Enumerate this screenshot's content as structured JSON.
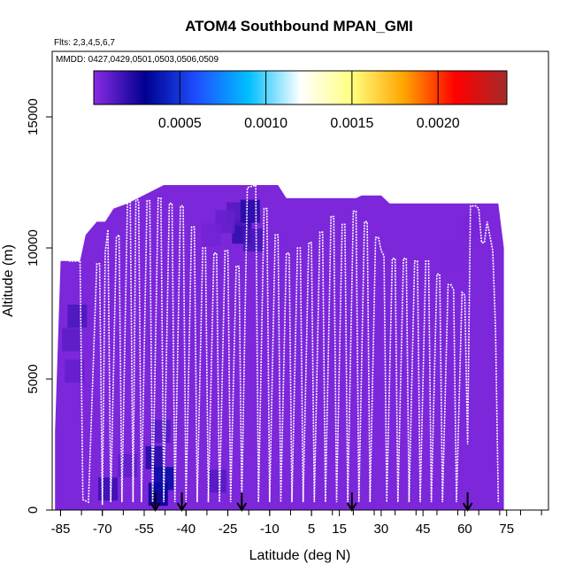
{
  "chart_data": {
    "type": "heatmap",
    "title": "ATOM4 Southbound MPAN_GMI",
    "subtitle_flights": "Flts: 2,3,4,5,6,7",
    "subtitle_dates": "MMDD: 0427,0429,0501,0503,0506,0509",
    "xlabel": "Latitude (deg N)",
    "ylabel": "Altitude (m)",
    "xlim": [
      -88,
      90
    ],
    "ylim": [
      0,
      17500
    ],
    "x_ticks": [
      "-85",
      "-70",
      "-55",
      "-40",
      "-25",
      "-10",
      "5",
      "15",
      "30",
      "45",
      "60",
      "75"
    ],
    "y_ticks": [
      "0",
      "5000",
      "10000",
      "15000"
    ],
    "colorbar": {
      "min": 0,
      "max": 0.0024,
      "tick_values": [
        0.0005,
        0.001,
        0.0015,
        0.002
      ],
      "tick_labels": [
        "0.0005",
        "0.0010",
        "0.0015",
        "0.0020"
      ],
      "colors": [
        "#8a2be2",
        "#000090",
        "#1e50ff",
        "#00bfff",
        "#ffffff",
        "#ffff80",
        "#ffa500",
        "#ff0000",
        "#a52a2a"
      ]
    },
    "background_value": 3e-05,
    "field_envelope": [
      {
        "lat": -87,
        "top": 3000
      },
      {
        "lat": -85,
        "top": 9500
      },
      {
        "lat": -78,
        "top": 9500
      },
      {
        "lat": -76,
        "top": 10500
      },
      {
        "lat": -72,
        "top": 11000
      },
      {
        "lat": -69,
        "top": 11000
      },
      {
        "lat": -66,
        "top": 11500
      },
      {
        "lat": -61,
        "top": 11700
      },
      {
        "lat": -48,
        "top": 12400
      },
      {
        "lat": -7,
        "top": 12400
      },
      {
        "lat": -4,
        "top": 11900
      },
      {
        "lat": 21,
        "top": 11900
      },
      {
        "lat": 23,
        "top": 12000
      },
      {
        "lat": 30,
        "top": 12000
      },
      {
        "lat": 33,
        "top": 11700
      },
      {
        "lat": 72,
        "top": 11700
      },
      {
        "lat": 74,
        "top": 10000
      },
      {
        "lat": 74,
        "top": 0
      }
    ],
    "flight_track": [
      [
        -82,
        9500
      ],
      [
        -80,
        9500
      ],
      [
        -78,
        9500
      ],
      [
        -77,
        400
      ],
      [
        -75,
        300
      ],
      [
        -72,
        9400
      ],
      [
        -71,
        9400
      ],
      [
        -70,
        200
      ],
      [
        -69,
        9800
      ],
      [
        -68,
        10700
      ],
      [
        -67,
        300
      ],
      [
        -65,
        10400
      ],
      [
        -64,
        10500
      ],
      [
        -63,
        300
      ],
      [
        -61,
        11800
      ],
      [
        -60,
        11900
      ],
      [
        -59,
        300
      ],
      [
        -58,
        11900
      ],
      [
        -57,
        11800
      ],
      [
        -56,
        300
      ],
      [
        -54,
        11800
      ],
      [
        -53,
        11800
      ],
      [
        -52,
        300
      ],
      [
        -50,
        11900
      ],
      [
        -49,
        11900
      ],
      [
        -48,
        300
      ],
      [
        -46,
        11700
      ],
      [
        -45,
        11700
      ],
      [
        -44,
        300
      ],
      [
        -42,
        11600
      ],
      [
        -41,
        11600
      ],
      [
        -40,
        300
      ],
      [
        -38,
        10800
      ],
      [
        -37,
        10800
      ],
      [
        -36,
        300
      ],
      [
        -34,
        10000
      ],
      [
        -33,
        10000
      ],
      [
        -32,
        300
      ],
      [
        -30,
        9800
      ],
      [
        -29,
        9800
      ],
      [
        -28,
        300
      ],
      [
        -26,
        9900
      ],
      [
        -25,
        9900
      ],
      [
        -24,
        300
      ],
      [
        -22,
        9300
      ],
      [
        -21,
        9300
      ],
      [
        -20,
        300
      ],
      [
        -18,
        12300
      ],
      [
        -15,
        12400
      ],
      [
        -14,
        300
      ],
      [
        -12,
        11500
      ],
      [
        -11,
        11500
      ],
      [
        -10,
        300
      ],
      [
        -8,
        10500
      ],
      [
        -7,
        10500
      ],
      [
        -6,
        300
      ],
      [
        -4,
        9800
      ],
      [
        -3,
        9800
      ],
      [
        -2,
        300
      ],
      [
        0,
        10000
      ],
      [
        1,
        10000
      ],
      [
        2,
        300
      ],
      [
        4,
        10200
      ],
      [
        5,
        10200
      ],
      [
        6,
        300
      ],
      [
        8,
        10600
      ],
      [
        9,
        10600
      ],
      [
        10,
        300
      ],
      [
        12,
        11200
      ],
      [
        13,
        11200
      ],
      [
        14,
        300
      ],
      [
        16,
        10900
      ],
      [
        17,
        10900
      ],
      [
        18,
        300
      ],
      [
        20,
        11400
      ],
      [
        21,
        11400
      ],
      [
        22,
        300
      ],
      [
        24,
        11000
      ],
      [
        25,
        11000
      ],
      [
        26,
        300
      ],
      [
        28,
        10400
      ],
      [
        29,
        10400
      ],
      [
        30,
        9900
      ],
      [
        31,
        9700
      ],
      [
        32,
        300
      ],
      [
        34,
        9600
      ],
      [
        35,
        9600
      ],
      [
        36,
        300
      ],
      [
        38,
        9600
      ],
      [
        39,
        9600
      ],
      [
        40,
        300
      ],
      [
        42,
        9500
      ],
      [
        43,
        9500
      ],
      [
        44,
        300
      ],
      [
        46,
        9500
      ],
      [
        47,
        9500
      ],
      [
        48,
        300
      ],
      [
        50,
        9000
      ],
      [
        51,
        9000
      ],
      [
        52,
        300
      ],
      [
        54,
        8600
      ],
      [
        55,
        8600
      ],
      [
        56,
        8400
      ],
      [
        57,
        300
      ],
      [
        59,
        8300
      ],
      [
        60,
        8200
      ],
      [
        61,
        2500
      ],
      [
        62,
        11600
      ],
      [
        64,
        11600
      ],
      [
        65,
        11500
      ],
      [
        66,
        10200
      ],
      [
        67,
        10200
      ],
      [
        68,
        11000
      ],
      [
        70,
        9900
      ],
      [
        71,
        7000
      ],
      [
        72,
        300
      ]
    ],
    "enhancements": [
      {
        "lat": -20,
        "alt": 10600,
        "value": 0.0002
      },
      {
        "lat": -22,
        "alt": 11300,
        "value": 0.00012
      },
      {
        "lat": -17,
        "alt": 11400,
        "value": 0.00022
      },
      {
        "lat": -16,
        "alt": 10300,
        "value": 0.00015
      },
      {
        "lat": -26,
        "alt": 11000,
        "value": 8e-05
      },
      {
        "lat": -31,
        "alt": 10500,
        "value": 5e-05
      },
      {
        "lat": -81,
        "alt": 6500,
        "value": 0.0001
      },
      {
        "lat": -79,
        "alt": 7400,
        "value": 0.00014
      },
      {
        "lat": -80,
        "alt": 5300,
        "value": 8e-05
      },
      {
        "lat": -50,
        "alt": 600,
        "value": 0.0003
      },
      {
        "lat": -51,
        "alt": 2000,
        "value": 0.00022
      },
      {
        "lat": -48,
        "alt": 1200,
        "value": 0.00035
      },
      {
        "lat": -49,
        "alt": 3000,
        "value": 0.00012
      },
      {
        "lat": -68,
        "alt": 800,
        "value": 0.00018
      },
      {
        "lat": -61,
        "alt": 1700,
        "value": 9e-05
      },
      {
        "lat": -29,
        "alt": 1100,
        "value": 0.00012
      },
      {
        "lat": 63,
        "alt": 10800,
        "value": 4e-05
      },
      {
        "lat": 55,
        "alt": 9600,
        "value": 3e-05
      }
    ],
    "markers": {
      "description": "downward arrows",
      "latitudes": [
        -51,
        -41.5,
        -20,
        19.5,
        61
      ]
    },
    "grid": false
  }
}
